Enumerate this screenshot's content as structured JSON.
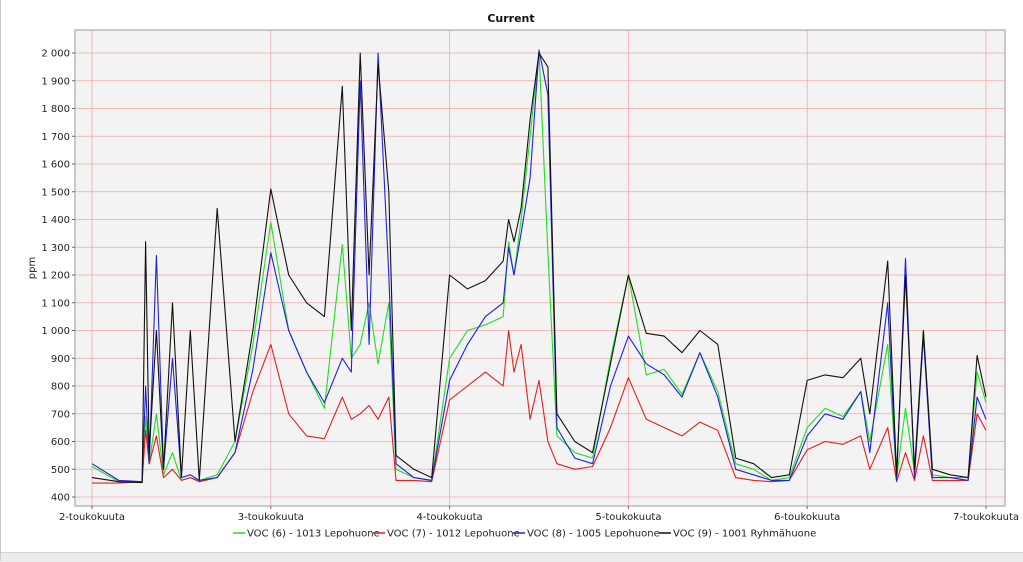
{
  "chart_data": {
    "type": "line",
    "title": "Current",
    "ylabel": "ppm",
    "xlabel": "",
    "ylim": [
      380,
      2040
    ],
    "yticks": [
      400,
      500,
      600,
      700,
      800,
      900,
      1000,
      1100,
      1200,
      1300,
      1400,
      1500,
      1600,
      1700,
      1800,
      1900,
      2000
    ],
    "ytick_labels": [
      "400",
      "500",
      "600",
      "700",
      "800",
      "900",
      "1 000",
      "1 100",
      "1 200",
      "1 300",
      "1 400",
      "1 500",
      "1 600",
      "1 700",
      "1 800",
      "1 900",
      "2 000"
    ],
    "xlim": [
      2,
      7.1
    ],
    "xticks": [
      2,
      3,
      4,
      5,
      6,
      7
    ],
    "xtick_labels": [
      "2-toukokuuta",
      "3-toukokuuta",
      "4-toukokuuta",
      "5-toukokuuta",
      "6-toukokuuta",
      "7-toukokuuta"
    ],
    "grid": true,
    "legend_position": "bottom",
    "x": [
      2.0,
      2.15,
      2.28,
      2.3,
      2.32,
      2.36,
      2.4,
      2.45,
      2.5,
      2.55,
      2.6,
      2.7,
      2.8,
      2.9,
      3.0,
      3.1,
      3.2,
      3.3,
      3.4,
      3.45,
      3.5,
      3.55,
      3.6,
      3.66,
      3.7,
      3.8,
      3.9,
      4.0,
      4.1,
      4.2,
      4.3,
      4.33,
      4.36,
      4.4,
      4.45,
      4.5,
      4.55,
      4.6,
      4.7,
      4.8,
      4.9,
      5.0,
      5.1,
      5.2,
      5.3,
      5.4,
      5.5,
      5.6,
      5.7,
      5.8,
      5.9,
      6.0,
      6.1,
      6.2,
      6.3,
      6.35,
      6.45,
      6.5,
      6.55,
      6.6,
      6.65,
      6.7,
      6.8,
      6.9,
      6.95,
      7.0
    ],
    "series": [
      {
        "name": "VOC (6) - 1013 Lepohuone",
        "color": "#22dd22",
        "values": [
          510,
          455,
          452,
          690,
          520,
          700,
          480,
          560,
          460,
          470,
          460,
          480,
          600,
          950,
          1390,
          1000,
          850,
          720,
          1310,
          900,
          950,
          1100,
          880,
          1100,
          500,
          470,
          460,
          900,
          1000,
          1020,
          1050,
          1320,
          1200,
          1400,
          1700,
          2010,
          1280,
          620,
          560,
          540,
          900,
          1200,
          840,
          860,
          770,
          920,
          780,
          520,
          500,
          460,
          470,
          650,
          720,
          690,
          780,
          600,
          950,
          470,
          720,
          490,
          1000,
          480,
          470,
          470,
          850,
          740
        ]
      },
      {
        "name": "VOC (7) - 1012 Lepohuone",
        "color": "#e02020",
        "values": [
          450,
          450,
          455,
          640,
          520,
          620,
          470,
          500,
          460,
          470,
          455,
          470,
          560,
          780,
          950,
          700,
          620,
          610,
          760,
          680,
          700,
          730,
          680,
          760,
          460,
          460,
          455,
          750,
          800,
          850,
          800,
          1000,
          850,
          950,
          680,
          820,
          600,
          520,
          500,
          510,
          650,
          830,
          680,
          650,
          620,
          670,
          640,
          470,
          460,
          455,
          460,
          570,
          600,
          590,
          620,
          500,
          650,
          455,
          560,
          460,
          620,
          460,
          460,
          460,
          700,
          640
        ]
      },
      {
        "name": "VOC (8) - 1005 Lepohuone",
        "color": "#2020dd",
        "values": [
          520,
          460,
          455,
          800,
          520,
          1270,
          500,
          900,
          470,
          480,
          460,
          470,
          560,
          860,
          1280,
          1000,
          850,
          740,
          900,
          850,
          1900,
          950,
          2000,
          1200,
          520,
          470,
          460,
          820,
          950,
          1050,
          1100,
          1300,
          1200,
          1350,
          1550,
          2010,
          1850,
          650,
          540,
          520,
          800,
          980,
          880,
          840,
          760,
          920,
          760,
          500,
          480,
          460,
          460,
          620,
          700,
          680,
          780,
          560,
          1100,
          460,
          1260,
          470,
          980,
          470,
          470,
          460,
          760,
          680
        ]
      },
      {
        "name": "VOC (9) - 1001 Ryhmähuone",
        "color": "#111111",
        "values": [
          470,
          455,
          452,
          1320,
          560,
          1000,
          500,
          1100,
          470,
          1000,
          460,
          1440,
          600,
          1000,
          1510,
          1200,
          1100,
          1050,
          1880,
          1000,
          2000,
          1200,
          1960,
          1500,
          550,
          500,
          470,
          1200,
          1150,
          1180,
          1250,
          1400,
          1320,
          1440,
          1760,
          2000,
          1950,
          700,
          600,
          560,
          880,
          1200,
          990,
          980,
          920,
          1000,
          950,
          540,
          520,
          470,
          480,
          820,
          840,
          830,
          900,
          700,
          1250,
          480,
          1200,
          500,
          1000,
          500,
          480,
          470,
          910,
          760
        ]
      }
    ]
  }
}
